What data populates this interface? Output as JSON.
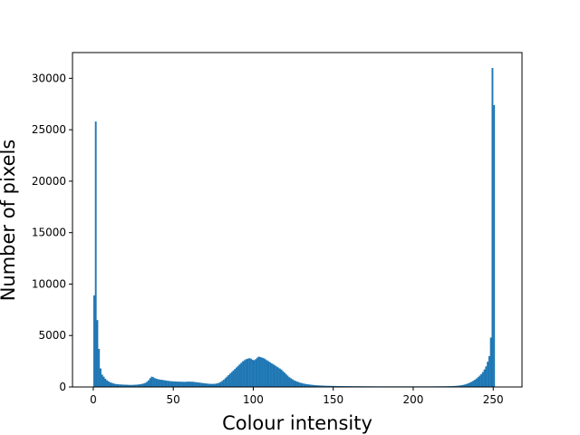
{
  "chart_data": {
    "type": "histogram",
    "title": "",
    "xlabel": "Colour intensity",
    "ylabel": "Number of pixels",
    "xlim": [
      -13,
      268
    ],
    "ylim": [
      0,
      32500
    ],
    "xticks": [
      0,
      50,
      100,
      150,
      200,
      250
    ],
    "yticks": [
      0,
      5000,
      10000,
      15000,
      20000,
      25000,
      30000
    ],
    "bar_color": "#1f77b4",
    "grid": false,
    "bins": {
      "bin_start": 0,
      "bin_width": 1,
      "counts": [
        8900,
        25800,
        6500,
        3700,
        1800,
        1200,
        1000,
        800,
        650,
        550,
        450,
        400,
        350,
        300,
        280,
        260,
        250,
        240,
        230,
        220,
        220,
        210,
        200,
        200,
        200,
        210,
        220,
        230,
        250,
        270,
        300,
        340,
        400,
        500,
        650,
        850,
        1000,
        950,
        850,
        800,
        750,
        720,
        700,
        680,
        650,
        620,
        600,
        580,
        560,
        550,
        540,
        530,
        520,
        520,
        510,
        510,
        500,
        500,
        510,
        520,
        520,
        510,
        500,
        480,
        460,
        440,
        420,
        400,
        380,
        360,
        340,
        320,
        310,
        300,
        300,
        300,
        320,
        350,
        400,
        480,
        580,
        700,
        850,
        1000,
        1150,
        1300,
        1450,
        1600,
        1750,
        1900,
        2050,
        2200,
        2350,
        2500,
        2600,
        2700,
        2750,
        2800,
        2750,
        2650,
        2600,
        2700,
        2850,
        2950,
        2900,
        2850,
        2800,
        2700,
        2600,
        2500,
        2400,
        2300,
        2200,
        2100,
        2000,
        1900,
        1800,
        1700,
        1550,
        1400,
        1250,
        1100,
        950,
        850,
        750,
        650,
        580,
        520,
        460,
        410,
        370,
        330,
        300,
        270,
        250,
        230,
        210,
        195,
        180,
        165,
        155,
        145,
        138,
        130,
        124,
        118,
        113,
        108,
        104,
        100,
        98,
        95,
        92,
        90,
        88,
        86,
        84,
        82,
        80,
        78,
        77,
        76,
        75,
        74,
        73,
        72,
        71,
        70,
        69,
        68,
        67,
        66,
        65,
        64,
        63,
        62,
        62,
        61,
        61,
        60,
        60,
        60,
        60,
        60,
        60,
        60,
        60,
        60,
        60,
        60,
        60,
        60,
        60,
        60,
        60,
        60,
        60,
        60,
        60,
        60,
        60,
        60,
        60,
        60,
        60,
        60,
        60,
        60,
        60,
        60,
        60,
        61,
        62,
        63,
        64,
        65,
        66,
        67,
        68,
        70,
        72,
        75,
        78,
        82,
        88,
        95,
        105,
        118,
        135,
        155,
        180,
        210,
        250,
        300,
        360,
        430,
        510,
        600,
        700,
        820,
        950,
        1100,
        1250,
        1450,
        1700,
        2000,
        2450,
        3000,
        4800,
        31000,
        27400
      ]
    }
  }
}
